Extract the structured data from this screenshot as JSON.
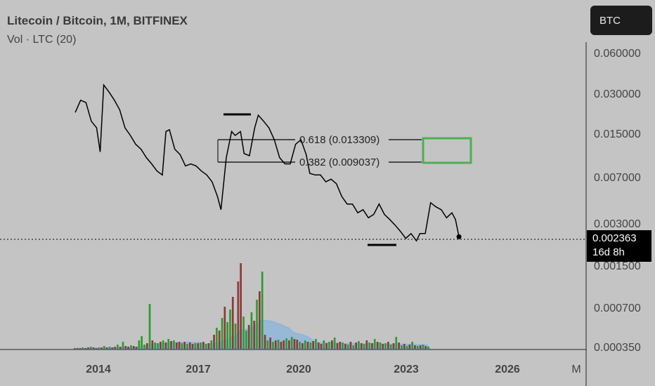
{
  "header": {
    "title": "Litecoin / Bitcoin, 1M, BITFINEX",
    "subtitle": "Vol · LTC (20)"
  },
  "symbol_button": "BTC",
  "last_price": {
    "value": "0.002363",
    "countdown": "16d 8h"
  },
  "fib_labels": {
    "upper": "0.618 (0.013309)",
    "lower": "0.382 (0.009037)"
  },
  "colors": {
    "background": "#c4c4c4",
    "price_line": "#000000",
    "target_box": "#4caf50",
    "volume_up": "#2e9b2e",
    "volume_down": "#8b3a3a",
    "volume_ma": "#7fb3e0"
  },
  "chart_data": {
    "type": "line",
    "title": "Litecoin / Bitcoin, 1M, BITFINEX",
    "y_scale": "log",
    "y_ticks": [
      "0.060000",
      "0.030000",
      "0.015000",
      "0.007000",
      "0.003000",
      "0.001500",
      "0.000700",
      "0.000350"
    ],
    "x_ticks": [
      "2014",
      "2017",
      "2020",
      "2023",
      "2026",
      "M"
    ],
    "series": [
      {
        "values": [
          [
            2013.35,
            0.021
          ],
          [
            2013.5,
            0.026
          ],
          [
            2013.65,
            0.025
          ],
          [
            2013.8,
            0.018
          ],
          [
            2013.95,
            0.016
          ],
          [
            2014.05,
            0.0105
          ],
          [
            2014.15,
            0.034
          ],
          [
            2014.3,
            0.03
          ],
          [
            2014.45,
            0.026
          ],
          [
            2014.6,
            0.022
          ],
          [
            2014.75,
            0.016
          ],
          [
            2014.9,
            0.014
          ],
          [
            2015.05,
            0.012
          ],
          [
            2015.2,
            0.011
          ],
          [
            2015.35,
            0.0095
          ],
          [
            2015.5,
            0.0085
          ],
          [
            2015.65,
            0.0075
          ],
          [
            2015.8,
            0.007
          ],
          [
            2015.9,
            0.015
          ],
          [
            2016.0,
            0.0155
          ],
          [
            2016.15,
            0.011
          ],
          [
            2016.3,
            0.01
          ],
          [
            2016.45,
            0.0082
          ],
          [
            2016.6,
            0.0085
          ],
          [
            2016.75,
            0.0082
          ],
          [
            2016.9,
            0.0075
          ],
          [
            2017.05,
            0.007
          ],
          [
            2017.2,
            0.0062
          ],
          [
            2017.35,
            0.0048
          ],
          [
            2017.45,
            0.0038
          ],
          [
            2017.6,
            0.0095
          ],
          [
            2017.75,
            0.015
          ],
          [
            2017.85,
            0.014
          ],
          [
            2018.0,
            0.015
          ],
          [
            2018.1,
            0.0102
          ],
          [
            2018.25,
            0.0098
          ],
          [
            2018.4,
            0.016
          ],
          [
            2018.5,
            0.02
          ],
          [
            2018.65,
            0.018
          ],
          [
            2018.8,
            0.016
          ],
          [
            2018.95,
            0.013
          ],
          [
            2019.1,
            0.0095
          ],
          [
            2019.25,
            0.0085
          ],
          [
            2019.4,
            0.0085
          ],
          [
            2019.55,
            0.012
          ],
          [
            2019.7,
            0.013
          ],
          [
            2019.85,
            0.01
          ],
          [
            2019.95,
            0.0072
          ],
          [
            2020.1,
            0.007
          ],
          [
            2020.25,
            0.007
          ],
          [
            2020.4,
            0.0062
          ],
          [
            2020.55,
            0.0065
          ],
          [
            2020.7,
            0.006
          ],
          [
            2020.85,
            0.0048
          ],
          [
            2021.0,
            0.0042
          ],
          [
            2021.15,
            0.0042
          ],
          [
            2021.3,
            0.0036
          ],
          [
            2021.45,
            0.0038
          ],
          [
            2021.6,
            0.0033
          ],
          [
            2021.75,
            0.0035
          ],
          [
            2021.9,
            0.0042
          ],
          [
            2022.05,
            0.0035
          ],
          [
            2022.2,
            0.0032
          ],
          [
            2022.35,
            0.0029
          ],
          [
            2022.5,
            0.0026
          ],
          [
            2022.65,
            0.0023
          ],
          [
            2022.8,
            0.0025
          ],
          [
            2022.95,
            0.0022
          ],
          [
            2023.05,
            0.0025
          ],
          [
            2023.2,
            0.0025
          ],
          [
            2023.35,
            0.0043
          ],
          [
            2023.5,
            0.004
          ],
          [
            2023.65,
            0.0038
          ],
          [
            2023.8,
            0.0033
          ],
          [
            2023.95,
            0.0036
          ],
          [
            2024.05,
            0.0032
          ],
          [
            2024.15,
            0.002363
          ]
        ]
      }
    ],
    "annotations": [
      {
        "type": "fib_level",
        "ratio": 0.618,
        "price": 0.013309,
        "label": "0.618 (0.013309)"
      },
      {
        "type": "fib_level",
        "ratio": 0.382,
        "price": 0.009037,
        "label": "0.382 (0.009037)"
      },
      {
        "type": "target_box",
        "price_range": [
          0.009037,
          0.013309
        ],
        "x_range": [
          2024.1,
          2025.6
        ]
      },
      {
        "type": "horizontal_marker",
        "label": "top",
        "x_range": [
          2017.65,
          2018.5
        ]
      },
      {
        "type": "horizontal_marker",
        "label": "bottom",
        "x_range": [
          2022.4,
          2023.5
        ]
      },
      {
        "type": "last_price_line",
        "price": 0.002363
      }
    ],
    "volume": {
      "name": "Vol · LTC (20)",
      "bars_up_down": [
        [
          "d",
          1
        ],
        [
          "d",
          1
        ],
        [
          "d",
          1
        ],
        [
          "u",
          2
        ],
        [
          "d",
          1
        ],
        [
          "d",
          2
        ],
        [
          "u",
          3
        ],
        [
          "d",
          2
        ],
        [
          "d",
          1
        ],
        [
          "u",
          2
        ],
        [
          "d",
          2
        ],
        [
          "u",
          4
        ],
        [
          "d",
          2
        ],
        [
          "u",
          3
        ],
        [
          "d",
          2
        ],
        [
          "d",
          3
        ],
        [
          "u",
          6
        ],
        [
          "d",
          3
        ],
        [
          "u",
          10
        ],
        [
          "d",
          4
        ],
        [
          "d",
          3
        ],
        [
          "u",
          5
        ],
        [
          "d",
          4
        ],
        [
          "d",
          3
        ],
        [
          "u",
          12
        ],
        [
          "u",
          18
        ],
        [
          "u",
          6
        ],
        [
          "d",
          8
        ],
        [
          "u",
          64
        ],
        [
          "d",
          12
        ],
        [
          "u",
          9
        ],
        [
          "u",
          8
        ],
        [
          "d",
          10
        ],
        [
          "u",
          12
        ],
        [
          "d",
          9
        ],
        [
          "u",
          14
        ],
        [
          "d",
          11
        ],
        [
          "u",
          12
        ],
        [
          "d",
          9
        ],
        [
          "d",
          10
        ],
        [
          "u",
          8
        ],
        [
          "d",
          10
        ],
        [
          "u",
          7
        ],
        [
          "d",
          9
        ],
        [
          "d",
          7
        ],
        [
          "u",
          8
        ],
        [
          "d",
          8
        ],
        [
          "u",
          9
        ],
        [
          "d",
          10
        ],
        [
          "u",
          7
        ],
        [
          "d",
          8
        ],
        [
          "u",
          12
        ],
        [
          "d",
          20
        ],
        [
          "u",
          30
        ],
        [
          "d",
          26
        ],
        [
          "u",
          44
        ],
        [
          "d",
          60
        ],
        [
          "u",
          38
        ],
        [
          "u",
          56
        ],
        [
          "d",
          74
        ],
        [
          "u",
          36
        ],
        [
          "d",
          96
        ],
        [
          "d",
          122
        ],
        [
          "u",
          46
        ],
        [
          "u",
          26
        ],
        [
          "d",
          34
        ],
        [
          "u",
          52
        ],
        [
          "d",
          40
        ],
        [
          "u",
          70
        ],
        [
          "d",
          82
        ],
        [
          "u",
          110
        ],
        [
          "d",
          20
        ],
        [
          "u",
          12
        ],
        [
          "d",
          16
        ],
        [
          "u",
          10
        ],
        [
          "d",
          12
        ],
        [
          "u",
          13
        ],
        [
          "d",
          10
        ],
        [
          "d",
          12
        ],
        [
          "u",
          15
        ],
        [
          "d",
          12
        ],
        [
          "u",
          17
        ],
        [
          "d",
          14
        ],
        [
          "d",
          13
        ],
        [
          "u",
          10
        ],
        [
          "d",
          8
        ],
        [
          "u",
          12
        ],
        [
          "d",
          10
        ],
        [
          "u",
          9
        ],
        [
          "d",
          11
        ],
        [
          "u",
          14
        ],
        [
          "d",
          9
        ],
        [
          "d",
          7
        ],
        [
          "u",
          12
        ],
        [
          "d",
          8
        ],
        [
          "u",
          10
        ],
        [
          "d",
          12
        ],
        [
          "u",
          16
        ],
        [
          "d",
          8
        ],
        [
          "d",
          10
        ],
        [
          "u",
          9
        ],
        [
          "d",
          7
        ],
        [
          "u",
          6
        ],
        [
          "d",
          10
        ],
        [
          "u",
          5
        ],
        [
          "d",
          9
        ],
        [
          "u",
          11
        ],
        [
          "d",
          8
        ],
        [
          "u",
          7
        ],
        [
          "d",
          12
        ],
        [
          "u",
          9
        ],
        [
          "d",
          8
        ],
        [
          "u",
          14
        ],
        [
          "d",
          10
        ],
        [
          "u",
          9
        ],
        [
          "d",
          7
        ],
        [
          "u",
          8
        ],
        [
          "d",
          10
        ],
        [
          "u",
          6
        ],
        [
          "d",
          8
        ],
        [
          "u",
          17
        ],
        [
          "d",
          9
        ],
        [
          "u",
          5
        ],
        [
          "d",
          7
        ],
        [
          "u",
          4
        ],
        [
          "d",
          6
        ],
        [
          "u",
          10
        ],
        [
          "d",
          5
        ],
        [
          "u",
          4
        ],
        [
          "d",
          5
        ],
        [
          "u",
          6
        ],
        [
          "d",
          4
        ],
        [
          "u",
          3
        ]
      ]
    }
  }
}
